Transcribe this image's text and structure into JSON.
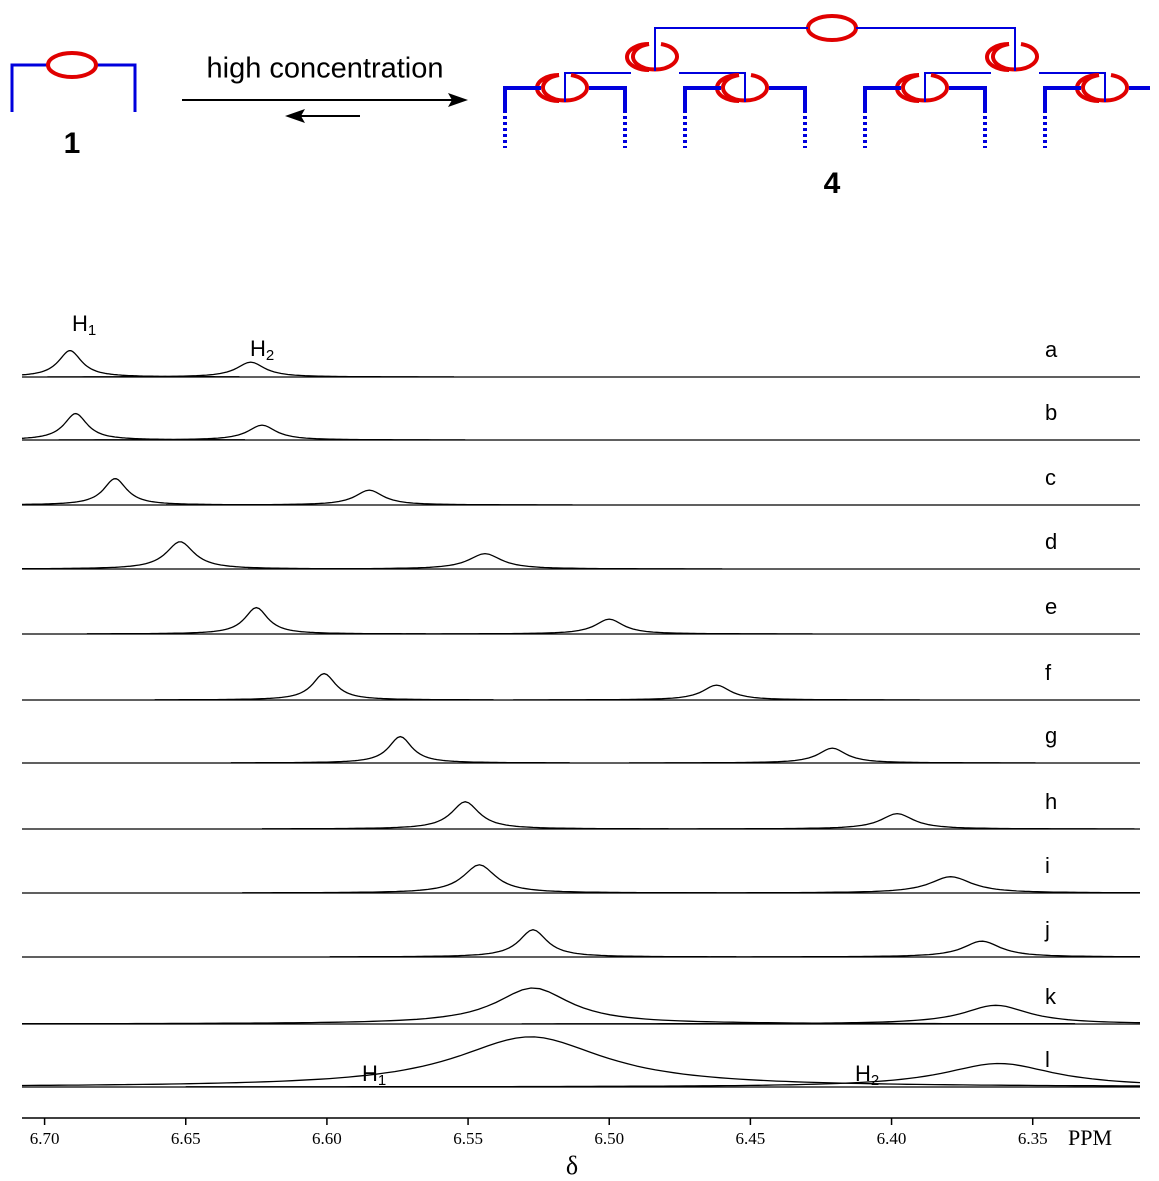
{
  "scheme": {
    "label": "high concentration",
    "monomer": "1",
    "polymer": "4"
  },
  "chart_data": {
    "type": "nmr-stack",
    "xlabel": "δ",
    "xunit": "PPM",
    "xlim": [
      6.708,
      6.312
    ],
    "xticks": [
      {
        "value": 6.7,
        "label": "6.70"
      },
      6.65,
      {
        "value": 6.6,
        "label": "6.60"
      },
      6.55,
      {
        "value": 6.5,
        "label": "6.50"
      },
      6.45,
      {
        "value": 6.4,
        "label": "6.40"
      },
      6.35
    ],
    "color": "#000000",
    "annotations": [
      {
        "text": "H",
        "sub": "1"
      },
      {
        "text": "H",
        "sub": "2"
      },
      {
        "text": "H",
        "sub": "1"
      },
      {
        "text": "H",
        "sub": "2"
      }
    ],
    "series": [
      {
        "name": "a",
        "values": [
          6.691,
          6.627
        ],
        "widths": [
          0.005,
          0.006
        ]
      },
      {
        "name": "b",
        "values": [
          6.689,
          6.623
        ],
        "widths": [
          0.005,
          0.006
        ]
      },
      {
        "name": "c",
        "values": [
          6.675,
          6.585
        ],
        "widths": [
          0.005,
          0.006
        ]
      },
      {
        "name": "d",
        "values": [
          6.652,
          6.544
        ],
        "widths": [
          0.006,
          0.007
        ]
      },
      {
        "name": "e",
        "values": [
          6.625,
          6.5
        ],
        "widths": [
          0.005,
          0.006
        ]
      },
      {
        "name": "f",
        "values": [
          6.601,
          6.462
        ],
        "widths": [
          0.005,
          0.006
        ]
      },
      {
        "name": "g",
        "values": [
          6.574,
          6.421
        ],
        "widths": [
          0.005,
          0.006
        ]
      },
      {
        "name": "h",
        "values": [
          6.551,
          6.398
        ],
        "widths": [
          0.006,
          0.007
        ]
      },
      {
        "name": "i",
        "values": [
          6.546,
          6.379
        ],
        "widths": [
          0.007,
          0.009
        ]
      },
      {
        "name": "j",
        "values": [
          6.527,
          6.368
        ],
        "widths": [
          0.006,
          0.008
        ]
      },
      {
        "name": "k",
        "values": [
          6.527,
          6.363
        ],
        "widths": [
          0.016,
          0.014
        ]
      },
      {
        "name": "l",
        "values": [
          6.528,
          6.362
        ],
        "widths": [
          0.032,
          0.024
        ]
      }
    ]
  }
}
